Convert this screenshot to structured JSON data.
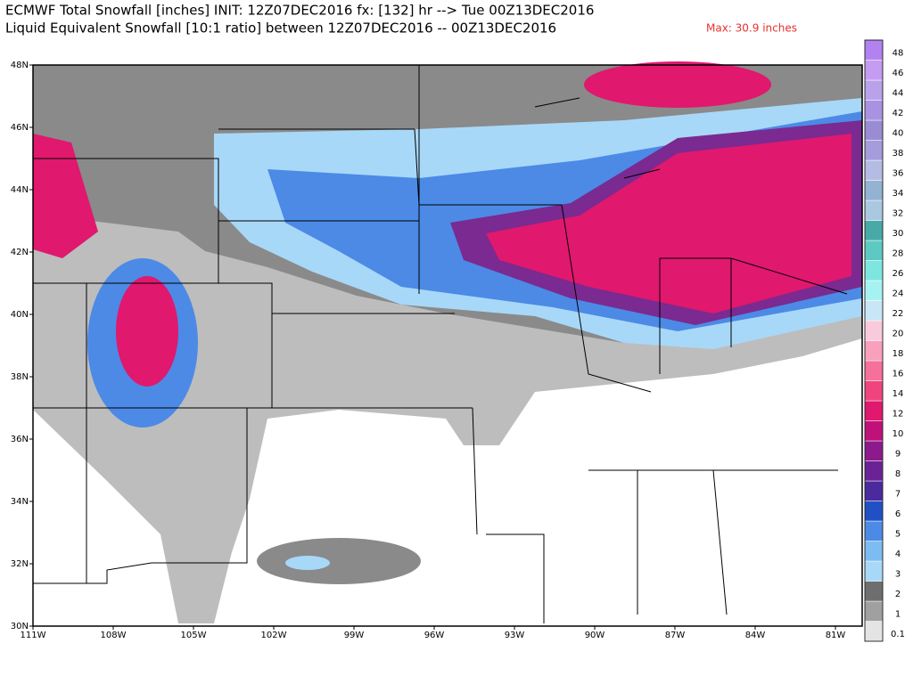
{
  "header": {
    "line1": "ECMWF Total Snowfall [inches] INIT: 12Z07DEC2016 fx: [132] hr --> Tue 00Z13DEC2016",
    "line2": "Liquid Equivalent Snowfall [10:1 ratio] between 12Z07DEC2016 -- 00Z13DEC2016",
    "max": "Max: 30.9 inches"
  },
  "map": {
    "lat_ticks": [
      {
        "value": 30,
        "label": "30N"
      },
      {
        "value": 32,
        "label": "32N"
      },
      {
        "value": 34,
        "label": "34N"
      },
      {
        "value": 36,
        "label": "36N"
      },
      {
        "value": 38,
        "label": "38N"
      },
      {
        "value": 40,
        "label": "40N"
      },
      {
        "value": 42,
        "label": "42N"
      },
      {
        "value": 44,
        "label": "44N"
      },
      {
        "value": 46,
        "label": "46N"
      },
      {
        "value": 48,
        "label": "48N"
      }
    ],
    "lon_ticks": [
      {
        "value": -111,
        "label": "111W"
      },
      {
        "value": -108,
        "label": "108W"
      },
      {
        "value": -105,
        "label": "105W"
      },
      {
        "value": -102,
        "label": "102W"
      },
      {
        "value": -99,
        "label": "99W"
      },
      {
        "value": -96,
        "label": "96W"
      },
      {
        "value": -93,
        "label": "93W"
      },
      {
        "value": -90,
        "label": "90W"
      },
      {
        "value": -87,
        "label": "87W"
      },
      {
        "value": -84,
        "label": "84W"
      },
      {
        "value": -81,
        "label": "81W"
      }
    ]
  },
  "colorbar": {
    "levels": [
      0.1,
      1,
      2,
      3,
      4,
      5,
      6,
      7,
      8,
      9,
      10,
      12,
      14,
      16,
      18,
      20,
      22,
      24,
      26,
      28,
      30,
      32,
      34,
      36,
      38,
      40,
      42,
      44,
      46,
      48
    ],
    "colors": [
      "#e4e4e4",
      "#a0a0a0",
      "#6e6e6e",
      "#a8d8f8",
      "#7cbcf2",
      "#4c8ae6",
      "#2050c4",
      "#4a2a9c",
      "#6a2296",
      "#8c1a8c",
      "#c0107a",
      "#e0186e",
      "#f0447e",
      "#f5709a",
      "#f8a0bc",
      "#f8cadc",
      "#c8e6f6",
      "#a6f2f2",
      "#7ee6e0",
      "#5ccac2",
      "#48aaa6",
      "#aac8e0",
      "#94b2d2",
      "#b4bce4",
      "#a49cdc",
      "#9a8cd2",
      "#aa92e2",
      "#baa2ea",
      "#c49cf2",
      "#b282f0"
    ]
  }
}
